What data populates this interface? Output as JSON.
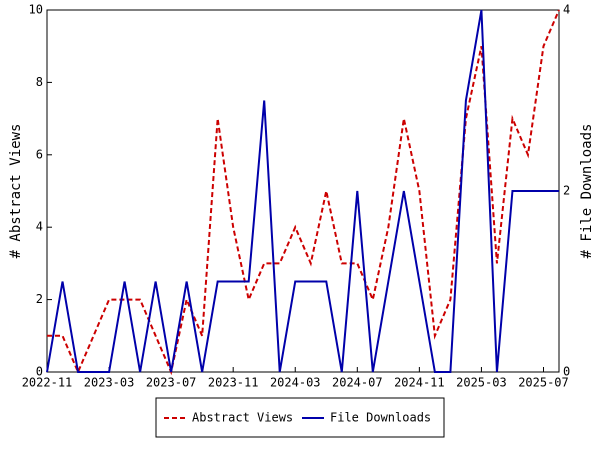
{
  "chart_data": {
    "type": "line",
    "categories": [
      "2022-11",
      null,
      null,
      null,
      "2023-03",
      null,
      null,
      null,
      "2023-07",
      null,
      null,
      null,
      "2023-11",
      null,
      null,
      null,
      "2024-03",
      null,
      null,
      null,
      "2024-07",
      null,
      null,
      null,
      "2024-11",
      null,
      null,
      null,
      "2025-03",
      null,
      null,
      null,
      "2025-07",
      null
    ],
    "series": [
      {
        "name": "Abstract Views",
        "color": "#cc0000",
        "dash": true,
        "values": [
          1,
          1,
          0,
          1,
          2,
          2,
          2,
          1,
          0,
          2,
          1,
          7,
          4,
          2,
          3,
          3,
          4,
          3,
          5,
          3,
          3,
          2,
          4,
          7,
          5,
          1,
          2,
          7,
          9,
          3,
          7,
          6,
          9,
          10
        ]
      },
      {
        "name": "File Downloads",
        "color": "#0000aa",
        "axis": "y2",
        "values": [
          0,
          1,
          0,
          0,
          0,
          1,
          0,
          1,
          0,
          1,
          0,
          1,
          1,
          1,
          3,
          0,
          1,
          1,
          1,
          0,
          2,
          0,
          1,
          2,
          1,
          0,
          0,
          3,
          4,
          0,
          2,
          2,
          2,
          2
        ]
      }
    ],
    "ylabel": "# Abstract Views",
    "y2label": "# File Downloads",
    "ylim": [
      0,
      10
    ],
    "yticks": [
      0,
      2,
      4,
      6,
      8,
      10
    ],
    "y2lim": [
      0,
      4
    ],
    "y2ticks": [
      0,
      2,
      4
    ],
    "legend": "bottom"
  }
}
